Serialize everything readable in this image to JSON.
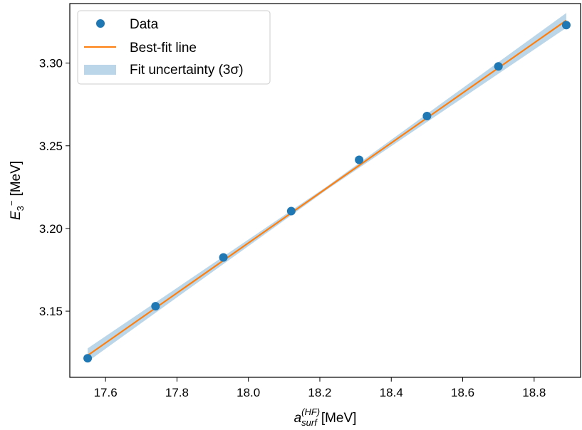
{
  "chart_data": {
    "type": "scatter",
    "title": "",
    "xlabel": {
      "symbol": "a",
      "superscript": "(HF)",
      "subscript": "surf",
      "unit": "[MeV]"
    },
    "ylabel": {
      "symbol": "E",
      "subscript": "3",
      "superscript": "−",
      "unit": "[MeV]"
    },
    "xlim": [
      17.5,
      18.93
    ],
    "ylim": [
      3.11,
      3.336
    ],
    "xticks": [
      17.6,
      17.8,
      18.0,
      18.2,
      18.4,
      18.6,
      18.8
    ],
    "xtick_labels": [
      "17.6",
      "17.8",
      "18.0",
      "18.2",
      "18.4",
      "18.6",
      "18.8"
    ],
    "yticks": [
      3.15,
      3.2,
      3.25,
      3.3
    ],
    "ytick_labels": [
      "3.15",
      "3.20",
      "3.25",
      "3.30"
    ],
    "grid": false,
    "legend_position": "top-left",
    "series": [
      {
        "name": "Data",
        "kind": "scatter",
        "color": "#1f77b4",
        "x": [
          17.55,
          17.74,
          17.93,
          18.12,
          18.31,
          18.5,
          18.7,
          18.89
        ],
        "y": [
          3.1215,
          3.153,
          3.1825,
          3.2105,
          3.2415,
          3.268,
          3.298,
          3.323
        ]
      },
      {
        "name": "Best-fit line",
        "kind": "line",
        "color": "#ff7f0e",
        "x": [
          17.55,
          18.89
        ],
        "y": [
          3.1232,
          3.3258
        ]
      },
      {
        "name": "Fit uncertainty (3σ)",
        "kind": "band",
        "color": "#1f77b4",
        "opacity": 0.3,
        "x": [
          17.55,
          18.22,
          18.89
        ],
        "y_lower": [
          3.1195,
          3.2235,
          3.3213
        ],
        "y_upper": [
          3.1275,
          3.2255,
          3.3303
        ]
      }
    ]
  }
}
